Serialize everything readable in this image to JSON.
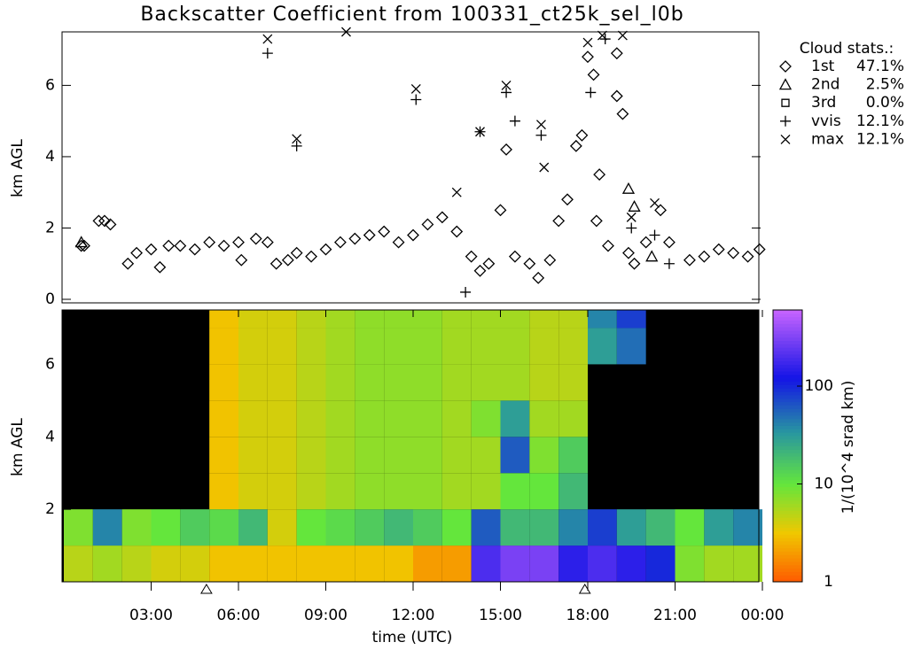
{
  "chart_data": [
    {
      "type": "scatter",
      "title": "Backscatter Coefficient from 100331_ct25k_sel_l0b",
      "ylabel": "km AGL",
      "xlim": [
        0,
        24
      ],
      "ylim": [
        0,
        7.5
      ],
      "yticks": [
        0,
        2,
        4,
        6
      ],
      "legend_title": "Cloud stats.:",
      "series": [
        {
          "name": "1st",
          "share": {
            "value": 47.1,
            "label": "47.1%"
          },
          "symbol": "diamond",
          "color": "#000000",
          "x": [
            0.6,
            0.7,
            1.2,
            1.4,
            1.6,
            2.2,
            2.5,
            3,
            3.3,
            3.6,
            4,
            4.5,
            5,
            5.5,
            6,
            6.1,
            6.6,
            7,
            7.3,
            7.7,
            8,
            8.5,
            9,
            9.5,
            10,
            10.5,
            11,
            11.5,
            12,
            12.5,
            13,
            13.5,
            14,
            14.3,
            14.6,
            15,
            15.2,
            15.5,
            16,
            16.3,
            16.7,
            17,
            17.3,
            17.6,
            17.8,
            18,
            18.2,
            18.3,
            18.4,
            18.7,
            19,
            19,
            19.2,
            19.4,
            19.6,
            20,
            20.5,
            20.8,
            21.5,
            22,
            22.5,
            23,
            23.5,
            23.9
          ],
          "y": [
            1.5,
            1.5,
            2.2,
            2.2,
            2.1,
            1,
            1.3,
            1.4,
            0.9,
            1.5,
            1.5,
            1.4,
            1.6,
            1.5,
            1.6,
            1.1,
            1.7,
            1.6,
            1,
            1.1,
            1.3,
            1.2,
            1.4,
            1.6,
            1.7,
            1.8,
            1.9,
            1.6,
            1.8,
            2.1,
            2.3,
            1.9,
            1.2,
            0.8,
            1,
            2.5,
            4.2,
            1.2,
            1,
            0.6,
            1.1,
            2.2,
            2.8,
            4.3,
            4.6,
            6.8,
            6.3,
            2.2,
            3.5,
            1.5,
            6.9,
            5.7,
            5.2,
            1.3,
            1,
            1.6,
            2.5,
            1.6,
            1.1,
            1.2,
            1.4,
            1.3,
            1.2,
            1.4
          ]
        },
        {
          "name": "2nd",
          "share": {
            "value": 2.5,
            "label": "2.5%"
          },
          "symbol": "triangle",
          "color": "#000000",
          "x": [
            0.6,
            19.4,
            19.6,
            20.2
          ],
          "y": [
            1.6,
            3.1,
            2.6,
            1.2
          ]
        },
        {
          "name": "3rd",
          "share": {
            "value": 0.0,
            "label": "0.0%"
          },
          "symbol": "square",
          "color": "#000000",
          "x": [],
          "y": []
        },
        {
          "name": "vvis",
          "share": {
            "value": 12.1,
            "label": "12.1%"
          },
          "symbol": "plus",
          "color": "#000000",
          "x": [
            7,
            8,
            12.1,
            13.8,
            14.3,
            15.2,
            15.5,
            16.4,
            18.1,
            18.6,
            19.5,
            20.3,
            20.8
          ],
          "y": [
            6.9,
            4.3,
            5.6,
            0.2,
            4.7,
            5.8,
            5,
            4.6,
            5.8,
            7.3,
            2,
            1.8,
            1
          ]
        },
        {
          "name": "max",
          "share": {
            "value": 12.1,
            "label": "12.1%"
          },
          "symbol": "cross",
          "color": "#000000",
          "x": [
            7,
            8,
            9.7,
            12.1,
            13.5,
            14.3,
            15.2,
            16.4,
            16.5,
            18,
            18.5,
            19.2,
            19.5,
            20.3
          ],
          "y": [
            7.3,
            4.5,
            7.5,
            5.9,
            3,
            4.7,
            6,
            4.9,
            3.7,
            7.2,
            7.4,
            7.4,
            2.3,
            2.7
          ]
        }
      ]
    },
    {
      "type": "heatmap",
      "ylabel": "km AGL",
      "xlabel": "time (UTC)",
      "xlim": [
        0,
        24
      ],
      "ylim": [
        0,
        7.5
      ],
      "yticks": [
        2,
        4,
        6
      ],
      "xticks": [
        {
          "value": 3,
          "label": "03:00"
        },
        {
          "value": 6,
          "label": "06:00"
        },
        {
          "value": 9,
          "label": "09:00"
        },
        {
          "value": 12,
          "label": "12:00"
        },
        {
          "value": 15,
          "label": "15:00"
        },
        {
          "value": 18,
          "label": "18:00"
        },
        {
          "value": 21,
          "label": "21:00"
        },
        {
          "value": 24,
          "label": "00:00"
        }
      ],
      "x_edges": [
        0,
        1,
        2,
        3,
        4,
        5,
        6,
        7,
        8,
        9,
        10,
        11,
        12,
        13,
        14,
        15,
        16,
        17,
        18,
        19,
        20,
        21,
        22,
        23,
        24
      ],
      "y_edges": [
        0,
        1,
        2,
        3,
        4,
        5,
        6,
        7,
        7.5
      ],
      "values": [
        [
          5,
          8,
          null,
          null,
          null,
          null,
          null,
          null
        ],
        [
          6,
          40,
          null,
          null,
          null,
          null,
          null,
          null
        ],
        [
          5,
          8,
          null,
          null,
          null,
          null,
          null,
          null
        ],
        [
          4,
          10,
          null,
          null,
          null,
          null,
          null,
          null
        ],
        [
          4,
          15,
          null,
          null,
          null,
          null,
          null,
          null
        ],
        [
          3,
          12,
          3,
          3,
          3,
          3,
          3,
          3
        ],
        [
          3,
          20,
          4,
          4,
          4,
          4,
          4,
          4
        ],
        [
          3,
          4,
          4,
          4,
          4,
          4,
          4,
          4
        ],
        [
          3,
          10,
          5,
          5,
          5,
          5,
          5,
          5
        ],
        [
          3,
          12,
          6,
          6,
          6,
          6,
          6,
          6
        ],
        [
          3,
          15,
          7,
          7,
          7,
          7,
          7,
          7
        ],
        [
          3,
          20,
          7,
          7,
          7,
          7,
          7,
          7
        ],
        [
          2,
          15,
          7,
          7,
          7,
          7,
          7,
          7
        ],
        [
          2,
          10,
          6,
          6,
          6,
          6,
          6,
          6
        ],
        [
          200,
          60,
          6,
          6,
          8,
          6,
          6,
          6
        ],
        [
          300,
          20,
          10,
          60,
          30,
          6,
          6,
          6
        ],
        [
          300,
          20,
          10,
          8,
          6,
          5,
          5,
          5
        ],
        [
          150,
          40,
          20,
          15,
          6,
          5,
          5,
          5
        ],
        [
          200,
          80,
          null,
          null,
          null,
          null,
          30,
          40
        ],
        [
          150,
          30,
          null,
          null,
          null,
          null,
          50,
          80
        ],
        [
          100,
          20,
          null,
          null,
          null,
          null,
          null,
          null
        ],
        [
          8,
          10,
          null,
          null,
          null,
          null,
          null,
          null
        ],
        [
          6,
          30,
          null,
          null,
          null,
          null,
          null,
          null
        ],
        [
          6,
          40,
          null,
          null,
          null,
          null,
          null,
          null
        ]
      ],
      "log_color": true,
      "clim": [
        1,
        600
      ],
      "cticks": [
        1,
        10,
        100
      ],
      "colorbar_label": "1/(10^4 srad km)",
      "markers_x": [
        4.9,
        17.9
      ]
    }
  ]
}
